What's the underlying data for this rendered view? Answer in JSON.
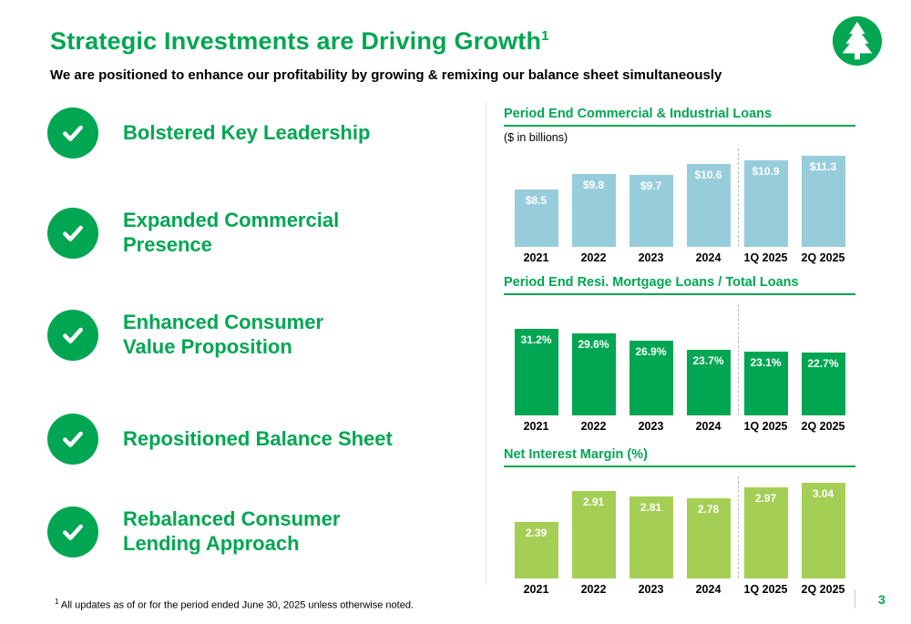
{
  "slide": {
    "title": "Strategic Investments are Driving Growth",
    "title_superscript": "1",
    "subtitle": "We are positioned to enhance our profitability by growing & remixing our balance sheet simultaneously",
    "footnote_superscript": "1",
    "footnote": "All updates as of or for the period ended June 30, 2025 unless otherwise noted.",
    "page_number": "3"
  },
  "icons": {
    "logo": "evergreen-tree-in-green-circle",
    "bullet_marker": "white-checkmark-in-green-circle"
  },
  "colors": {
    "brand_green": "#00A651",
    "c_and_i_bar_blue": "#97CDDB",
    "mortgage_bar_green": "#00A651",
    "nim_bar_lime": "#A5CE55",
    "text_black": "#000000",
    "dashed_divider_gray": "#B8B8B8"
  },
  "bullets": [
    {
      "label": "Bolstered Key Leadership"
    },
    {
      "label": "Expanded Commercial\nPresence"
    },
    {
      "label": "Enhanced Consumer\nValue Proposition"
    },
    {
      "label": "Repositioned Balance Sheet"
    },
    {
      "label": "Rebalanced Consumer\nLending Approach"
    }
  ],
  "chart_data": [
    {
      "type": "bar",
      "title": "Period End Commercial & Industrial Loans",
      "subtitle": "($ in billions)",
      "categories": [
        "2021",
        "2022",
        "2023",
        "2024",
        "1Q 2025",
        "2Q 2025"
      ],
      "values": [
        8.5,
        9.8,
        9.7,
        10.6,
        10.9,
        11.3
      ],
      "labels": [
        "$8.5",
        "$9.8",
        "$9.7",
        "$10.6",
        "$10.9",
        "$11.3"
      ],
      "bar_color": "#97CDDB",
      "ylim": [
        3.8,
        11.9
      ],
      "grid": false,
      "legend": "none",
      "divider_after_index": 3
    },
    {
      "type": "bar",
      "title": "Period End Resi. Mortgage Loans / Total Loans",
      "subtitle": "",
      "categories": [
        "2021",
        "2022",
        "2023",
        "2024",
        "1Q 2025",
        "2Q 2025"
      ],
      "values": [
        31.2,
        29.6,
        26.9,
        23.7,
        23.1,
        22.7
      ],
      "labels": [
        "31.2%",
        "29.6%",
        "26.9%",
        "23.7%",
        "23.1%",
        "22.7%"
      ],
      "bar_color": "#00A651",
      "ylim": [
        0,
        40
      ],
      "grid": false,
      "legend": "none",
      "divider_after_index": 3
    },
    {
      "type": "bar",
      "title": "Net Interest Margin (%)",
      "subtitle": "",
      "categories": [
        "2021",
        "2022",
        "2023",
        "2024",
        "1Q 2025",
        "2Q 2025"
      ],
      "values": [
        2.39,
        2.91,
        2.81,
        2.78,
        2.97,
        3.04
      ],
      "labels": [
        "2.39",
        "2.91",
        "2.81",
        "2.78",
        "2.97",
        "3.04"
      ],
      "bar_color": "#A5CE55",
      "ylim": [
        1.45,
        3.15
      ],
      "grid": false,
      "legend": "none",
      "divider_after_index": 3
    }
  ]
}
